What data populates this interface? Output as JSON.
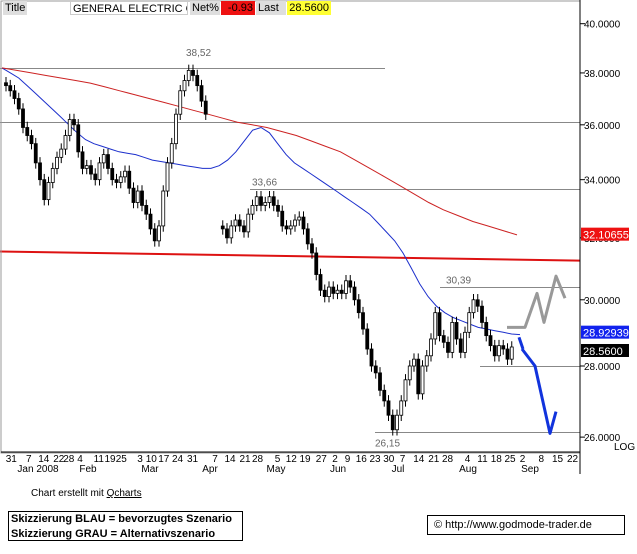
{
  "header": {
    "title_label": "Title",
    "name": "GENERAL ELECTRIC CO",
    "change_label": "Net%",
    "change_value": "-0.93",
    "last_label": "Last",
    "last_value": "28.5600"
  },
  "credit": {
    "prefix": "Chart erstellt mit ",
    "brand": "Qcharts"
  },
  "legend": {
    "blue": "Skizzierung BLAU = bevorzugtes Szenario",
    "grey": "Skizzierung GRAU = Alternativszenario"
  },
  "url": "http://www.godmode-trader.de",
  "colors": {
    "ma_short": "#1c2fcc",
    "ma_long": "#cc2222",
    "support": "#dd1111",
    "scenario_blue": "#1133dd",
    "scenario_grey": "#999999",
    "badge_red": "#ee1111",
    "badge_blue": "#1122ee",
    "badge_black": "#000000",
    "badge_yellow": "#ffff33"
  },
  "chart_data": {
    "type": "candlestick",
    "title": "GENERAL ELECTRIC CO",
    "yscale": "log",
    "ylim": [
      25.6,
      41.0
    ],
    "y_ticks": [
      "40.0000",
      "38.0000",
      "36.0000",
      "34.0000",
      "32.0000",
      "30.0000",
      "28.0000",
      "26.0000"
    ],
    "y_tick_values": [
      40,
      38,
      36,
      34,
      32,
      30,
      28,
      26
    ],
    "y_axis_note": "LOG",
    "x_day_labels": [
      "31",
      "7",
      "14",
      "22",
      "28",
      "4",
      "11",
      "19",
      "25",
      "3",
      "10",
      "17",
      "24",
      "31",
      "7",
      "14",
      "21",
      "28",
      "5",
      "12",
      "19",
      "27",
      "2",
      "9",
      "16",
      "23",
      "30",
      "7",
      "14",
      "21",
      "28",
      "4",
      "11",
      "18",
      "25",
      "2",
      "8",
      "15",
      "22"
    ],
    "x_month_labels": [
      "Jan 2008",
      "Feb",
      "Mar",
      "Apr",
      "May",
      "Jun",
      "Jul",
      "Aug",
      "Sep"
    ],
    "annotations": [
      {
        "label": "38,52",
        "value": 38.52
      },
      {
        "label": "33,66",
        "value": 33.66
      },
      {
        "label": "30,39",
        "value": 30.39
      },
      {
        "label": "26,15",
        "value": 26.15
      }
    ],
    "horizontal_levels": [
      38.2,
      36.1,
      33.66,
      30.39,
      28.0,
      26.15
    ],
    "support_line": {
      "start": 31.55,
      "end": 31.25
    },
    "badges": [
      {
        "label": "32.10655",
        "value": 32.10655,
        "series": "MA long"
      },
      {
        "label": "28.92939",
        "value": 28.92939,
        "series": "MA short"
      },
      {
        "label": "28.5600",
        "value": 28.56,
        "series": "Last"
      }
    ],
    "close": [
      37.5,
      37.3,
      37.0,
      36.6,
      35.9,
      35.6,
      35.3,
      34.6,
      34.0,
      33.3,
      33.9,
      34.4,
      34.8,
      35.1,
      35.6,
      36.2,
      36.0,
      35.0,
      34.4,
      34.5,
      34.2,
      34.0,
      34.6,
      34.9,
      34.4,
      34.0,
      33.9,
      34.1,
      34.3,
      33.7,
      33.2,
      33.6,
      33.1,
      32.8,
      32.3,
      31.9,
      32.4,
      33.6,
      34.6,
      35.3,
      36.4,
      37.3,
      37.7,
      38.1,
      37.9,
      37.5,
      36.9,
      36.4,
      null,
      null,
      null,
      32.3,
      32.0,
      32.4,
      32.6,
      32.4,
      32.2,
      32.8,
      33.1,
      33.4,
      33.1,
      33.2,
      33.4,
      33.1,
      32.9,
      32.4,
      32.3,
      32.4,
      32.6,
      32.7,
      32.3,
      31.8,
      31.5,
      30.8,
      30.3,
      30.1,
      30.4,
      30.2,
      30.3,
      30.2,
      30.6,
      30.4,
      30.0,
      29.6,
      29.1,
      28.5,
      28.0,
      27.8,
      27.3,
      27.0,
      26.6,
      26.2,
      26.6,
      27.0,
      27.6,
      28.0,
      28.2,
      27.2,
      28.0,
      28.3,
      28.8,
      29.6,
      28.9,
      28.7,
      28.4,
      29.3,
      28.8,
      28.4,
      29.0,
      29.6,
      30.0,
      29.8,
      29.3,
      28.9,
      28.6,
      28.3,
      28.6,
      28.5,
      28.2,
      28.56
    ],
    "ma_short": [
      38.2,
      38.0,
      37.8,
      37.5,
      37.2,
      36.9,
      36.6,
      36.3,
      36.0,
      35.7,
      35.45,
      35.3,
      35.2,
      35.1,
      35.0,
      34.95,
      34.9,
      34.8,
      34.7,
      34.65,
      34.6,
      34.55,
      34.5,
      34.45,
      34.4,
      34.4,
      34.5,
      34.7,
      35.0,
      35.4,
      35.8,
      35.9,
      35.7,
      35.3,
      34.9,
      34.6,
      34.4,
      34.2,
      34.0,
      33.8,
      33.6,
      33.4,
      33.2,
      33.0,
      32.8,
      32.5,
      32.2,
      31.9,
      31.5,
      31.0,
      30.5,
      30.1,
      29.8,
      29.6,
      29.45,
      29.35,
      29.25,
      29.15,
      29.1,
      29.05,
      29.0,
      28.95,
      28.93
    ],
    "ma_long": [
      38.2,
      38.1,
      38.0,
      37.9,
      37.8,
      37.7,
      37.6,
      37.45,
      37.3,
      37.15,
      37.0,
      36.85,
      36.7,
      36.55,
      36.4,
      36.25,
      36.1,
      36.0,
      35.9,
      35.75,
      35.6,
      35.4,
      35.2,
      35.0,
      34.7,
      34.4,
      34.1,
      33.8,
      33.5,
      33.2,
      32.95,
      32.75,
      32.55,
      32.4,
      32.25,
      32.1
    ],
    "scenario_blue": [
      28.5,
      28.0,
      26.1,
      26.7
    ],
    "scenario_grey": [
      29.15,
      29.15,
      30.2,
      29.3,
      30.75,
      30.05
    ]
  }
}
